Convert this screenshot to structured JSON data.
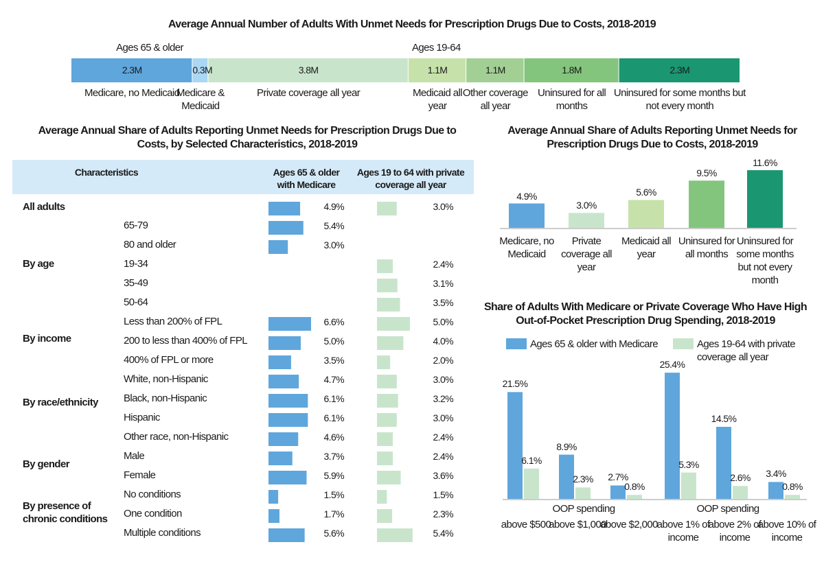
{
  "chart_data": [
    {
      "type": "bar",
      "subtype": "stacked-horizontal",
      "title": "Average Annual Number of Adults With Unmet Needs for Prescription Drugs Due to Costs, 2018-2019",
      "groups": [
        {
          "label": "Ages 65 & older"
        },
        {
          "label": "Ages 19-64"
        }
      ],
      "segments": [
        {
          "label": "Medicare, no Medicaid",
          "value": 2.3,
          "text": "2.3M",
          "color": "#5fa6dc"
        },
        {
          "label": "Medicare & Medicaid",
          "value": 0.3,
          "text": "0.3M",
          "color": "#a9d7f4"
        },
        {
          "label": "Private coverage all year",
          "value": 3.8,
          "text": "3.8M",
          "color": "#c8e5cb"
        },
        {
          "label": "Medicaid all year",
          "value": 1.1,
          "text": "1.1M",
          "color": "#c6e2aa"
        },
        {
          "label": "Other coverage all year",
          "value": 1.1,
          "text": "1.1M",
          "color": "#a2cf94"
        },
        {
          "label": "Uninsured for all months",
          "value": 1.8,
          "text": "1.8M",
          "color": "#83c57c"
        },
        {
          "label": "Uninsured for some months but not every month",
          "value": 2.3,
          "text": "2.3M",
          "color": "#1a9671"
        }
      ]
    },
    {
      "type": "table",
      "title": "Average Annual Share of Adults Reporting Unmet Needs for Prescription Drugs Due to Costs, by Selected Characteristics, 2018-2019",
      "columns": [
        "Characteristics",
        "Ages 65 & older with Medicare",
        "Ages 19 to 64 with private coverage all year"
      ],
      "colors": {
        "medicare": "#5fa6dc",
        "private": "#c8e5cb"
      },
      "groups": [
        {
          "label": "All adults",
          "row": 0
        },
        {
          "label": "By age",
          "row": 3
        },
        {
          "label": "By income",
          "row": 7
        },
        {
          "label": "By race/ethnicity",
          "row": 10
        },
        {
          "label": "By gender",
          "row": 13
        },
        {
          "label": "By presence of chronic conditions",
          "row": 15
        }
      ],
      "rows": [
        {
          "label": "",
          "medicare": 4.9,
          "private": 3.0
        },
        {
          "label": "65-79",
          "medicare": 5.4,
          "private": null
        },
        {
          "label": "80 and older",
          "medicare": 3.0,
          "private": null
        },
        {
          "label": "19-34",
          "medicare": null,
          "private": 2.4
        },
        {
          "label": "35-49",
          "medicare": null,
          "private": 3.1
        },
        {
          "label": "50-64",
          "medicare": null,
          "private": 3.5
        },
        {
          "label": "Less than 200% of FPL",
          "medicare": 6.6,
          "private": 5.0
        },
        {
          "label": "200 to less than 400% of FPL",
          "medicare": 5.0,
          "private": 4.0
        },
        {
          "label": "400% of FPL or more",
          "medicare": 3.5,
          "private": 2.0
        },
        {
          "label": "White, non-Hispanic",
          "medicare": 4.7,
          "private": 3.0
        },
        {
          "label": "Black, non-Hispanic",
          "medicare": 6.1,
          "private": 3.2
        },
        {
          "label": "Hispanic",
          "medicare": 6.1,
          "private": 3.0
        },
        {
          "label": "Other race, non-Hispanic",
          "medicare": 4.6,
          "private": 2.4
        },
        {
          "label": "Male",
          "medicare": 3.7,
          "private": 2.4
        },
        {
          "label": "Female",
          "medicare": 5.9,
          "private": 3.6
        },
        {
          "label": "No conditions",
          "medicare": 1.5,
          "private": 1.5
        },
        {
          "label": "One condition",
          "medicare": 1.7,
          "private": 2.3
        },
        {
          "label": "Multiple conditions",
          "medicare": 5.6,
          "private": 5.4
        }
      ]
    },
    {
      "type": "bar",
      "title": "Average Annual Share of Adults Reporting Unmet Needs for Prescription Drugs Due to Costs, 2018-2019",
      "categories": [
        "Medicare, no Medicaid",
        "Private coverage all year",
        "Medicaid all year",
        "Uninsured for all months",
        "Uninsured for some months but not every month"
      ],
      "values": [
        4.9,
        3.0,
        5.6,
        9.5,
        11.6
      ],
      "colors": [
        "#5fa6dc",
        "#c8e5cb",
        "#c6e2aa",
        "#83c57c",
        "#1a9671"
      ],
      "ylim": [
        0,
        12
      ]
    },
    {
      "type": "bar",
      "title": "Share of Adults With Medicare or Private Coverage Who Have High Out-of-Pocket Prescription Drug Spending, 2018-2019",
      "group_labels": [
        "OOP spending",
        "OOP spending"
      ],
      "categories": [
        "above $500",
        "above $1,000",
        "above $2,000",
        "above 1% of income",
        "above 2% of income",
        "above 10% of income"
      ],
      "series": [
        {
          "name": "Ages 65 & older with Medicare",
          "color": "#5fa6dc",
          "values": [
            21.5,
            8.9,
            2.7,
            25.4,
            14.5,
            3.4
          ]
        },
        {
          "name": "Ages 19-64 with private coverage all year",
          "color": "#c8e5cb",
          "values": [
            6.1,
            2.3,
            0.8,
            5.3,
            2.6,
            0.8
          ]
        }
      ],
      "legend": "top",
      "ylim": [
        0,
        26
      ]
    }
  ]
}
